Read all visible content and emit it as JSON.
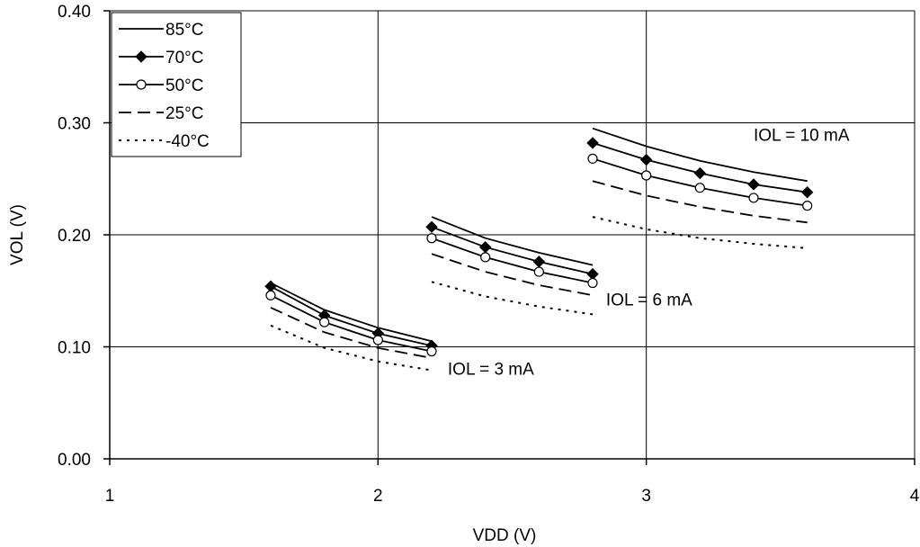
{
  "chart_data": {
    "type": "line",
    "xlabel": "VDD (V)",
    "ylabel": "VOL (V)",
    "xlim": [
      1,
      4
    ],
    "ylim": [
      0.0,
      0.4
    ],
    "xticks": [
      "1",
      "2",
      "3",
      "4"
    ],
    "yticks": [
      "0.00",
      "0.10",
      "0.20",
      "0.30",
      "0.40"
    ],
    "grid": true,
    "legend_position": "top-left",
    "series": [
      {
        "name": "85°C",
        "line": "solid",
        "marker": "none",
        "color": "#000000",
        "groups": [
          {
            "x": [
              1.6,
              1.8,
              2.0,
              2.2
            ],
            "y": [
              0.157,
              0.133,
              0.117,
              0.105
            ]
          },
          {
            "x": [
              2.2,
              2.4,
              2.6,
              2.8
            ],
            "y": [
              0.216,
              0.197,
              0.184,
              0.173
            ]
          },
          {
            "x": [
              2.8,
              3.0,
              3.2,
              3.4,
              3.6
            ],
            "y": [
              0.295,
              0.279,
              0.266,
              0.256,
              0.248
            ]
          }
        ]
      },
      {
        "name": "70°C",
        "line": "solid",
        "marker": "filled-diamond",
        "color": "#000000",
        "groups": [
          {
            "x": [
              1.6,
              1.8,
              2.0,
              2.2
            ],
            "y": [
              0.154,
              0.128,
              0.112,
              0.101
            ]
          },
          {
            "x": [
              2.2,
              2.4,
              2.6,
              2.8
            ],
            "y": [
              0.207,
              0.189,
              0.176,
              0.165
            ]
          },
          {
            "x": [
              2.8,
              3.0,
              3.2,
              3.4,
              3.6
            ],
            "y": [
              0.282,
              0.267,
              0.255,
              0.245,
              0.238
            ]
          }
        ]
      },
      {
        "name": "50°C",
        "line": "solid",
        "marker": "open-circle",
        "color": "#000000",
        "groups": [
          {
            "x": [
              1.6,
              1.8,
              2.0,
              2.2
            ],
            "y": [
              0.146,
              0.122,
              0.106,
              0.096
            ]
          },
          {
            "x": [
              2.2,
              2.4,
              2.6,
              2.8
            ],
            "y": [
              0.197,
              0.18,
              0.167,
              0.157
            ]
          },
          {
            "x": [
              2.8,
              3.0,
              3.2,
              3.4,
              3.6
            ],
            "y": [
              0.268,
              0.253,
              0.242,
              0.233,
              0.226
            ]
          }
        ]
      },
      {
        "name": "25°C",
        "line": "dashed",
        "marker": "none",
        "color": "#000000",
        "groups": [
          {
            "x": [
              1.6,
              1.8,
              2.0,
              2.2
            ],
            "y": [
              0.135,
              0.113,
              0.099,
              0.09
            ]
          },
          {
            "x": [
              2.2,
              2.4,
              2.6,
              2.8
            ],
            "y": [
              0.183,
              0.167,
              0.155,
              0.146
            ]
          },
          {
            "x": [
              2.8,
              3.0,
              3.2,
              3.4,
              3.6
            ],
            "y": [
              0.248,
              0.235,
              0.225,
              0.217,
              0.211
            ]
          }
        ]
      },
      {
        "name": "-40°C",
        "line": "dotted",
        "marker": "none",
        "color": "#000000",
        "groups": [
          {
            "x": [
              1.6,
              1.8,
              2.0,
              2.2
            ],
            "y": [
              0.119,
              0.099,
              0.087,
              0.079
            ]
          },
          {
            "x": [
              2.2,
              2.4,
              2.6,
              2.8
            ],
            "y": [
              0.158,
              0.145,
              0.136,
              0.129
            ]
          },
          {
            "x": [
              2.8,
              3.0,
              3.2,
              3.4,
              3.6
            ],
            "y": [
              0.216,
              0.205,
              0.197,
              0.192,
              0.188
            ]
          }
        ]
      }
    ],
    "annotations": [
      {
        "text": "IOL = 3 mA",
        "x": 2.26,
        "y": 0.075
      },
      {
        "text": "IOL = 6 mA",
        "x": 2.85,
        "y": 0.137
      },
      {
        "text": "IOL = 10 mA",
        "x": 3.4,
        "y": 0.284
      }
    ]
  }
}
